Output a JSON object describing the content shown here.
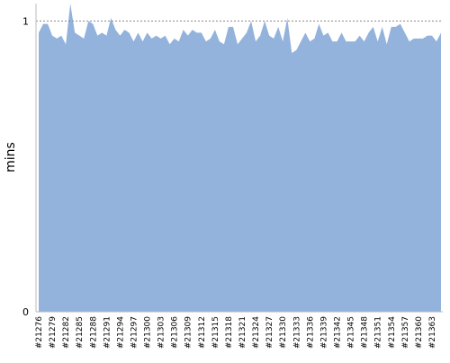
{
  "chart_data": {
    "type": "area",
    "y_label": "mins",
    "categories": [
      "#21276",
      null,
      null,
      "#21279",
      null,
      null,
      "#21282",
      null,
      null,
      "#21285",
      null,
      null,
      "#21288",
      null,
      null,
      "#21291",
      null,
      null,
      "#21294",
      null,
      null,
      "#21297",
      null,
      null,
      "#21300",
      null,
      null,
      "#21303",
      null,
      null,
      "#21306",
      null,
      null,
      "#21309",
      null,
      null,
      "#21312",
      null,
      null,
      "#21315",
      null,
      null,
      "#21318",
      null,
      null,
      "#21321",
      null,
      null,
      "#21324",
      null,
      null,
      "#21327",
      null,
      null,
      "#21330",
      null,
      null,
      "#21333",
      null,
      null,
      "#21336",
      null,
      null,
      "#21339",
      null,
      null,
      "#21342",
      null,
      null,
      "#21345",
      null,
      null,
      "#21348",
      null,
      null,
      "#21351",
      null,
      null,
      "#21354",
      null,
      null,
      "#21357",
      null,
      null,
      "#21360",
      null,
      null,
      "#21363",
      null,
      null
    ],
    "values": [
      0.96,
      0.99,
      0.99,
      0.95,
      0.94,
      0.95,
      0.92,
      1.06,
      0.96,
      0.95,
      0.94,
      1.0,
      0.99,
      0.95,
      0.96,
      0.95,
      1.01,
      0.97,
      0.95,
      0.97,
      0.96,
      0.93,
      0.96,
      0.93,
      0.96,
      0.94,
      0.95,
      0.94,
      0.95,
      0.92,
      0.94,
      0.93,
      0.97,
      0.95,
      0.97,
      0.96,
      0.96,
      0.93,
      0.94,
      0.97,
      0.93,
      0.92,
      0.98,
      0.98,
      0.92,
      0.94,
      0.96,
      1.0,
      0.93,
      0.95,
      1.0,
      0.95,
      0.94,
      0.98,
      0.93,
      1.01,
      0.89,
      0.9,
      0.93,
      0.96,
      0.93,
      0.94,
      0.99,
      0.95,
      0.96,
      0.93,
      0.93,
      0.96,
      0.93,
      0.93,
      0.93,
      0.95,
      0.93,
      0.96,
      0.98,
      0.93,
      0.98,
      0.92,
      0.98,
      0.98,
      0.99,
      0.96,
      0.93,
      0.94,
      0.94,
      0.94,
      0.95,
      0.95,
      0.93,
      0.96
    ],
    "color": "#93b3dc",
    "ylim": [
      0,
      1.06
    ],
    "yticks": [
      0,
      1
    ],
    "grid": true
  }
}
